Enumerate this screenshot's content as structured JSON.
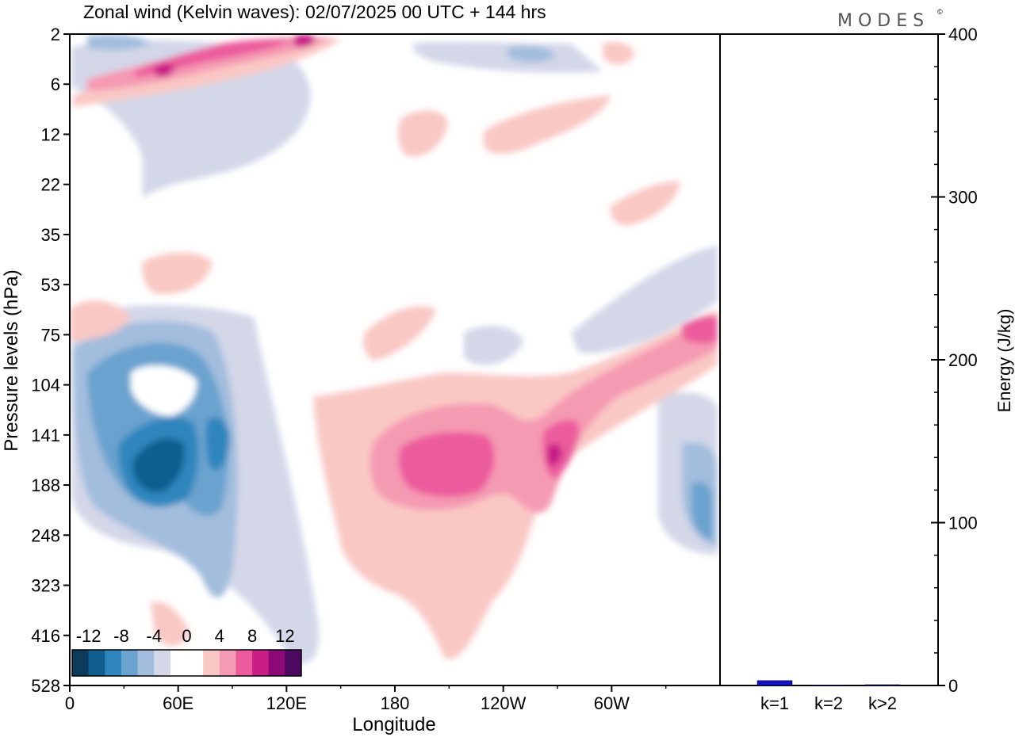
{
  "chart_data": [
    {
      "type": "heatmap",
      "title": "Zonal wind (Kelvin waves):  02/07/2025  00 UTC  + 144 hrs",
      "xlabel": "Longitude",
      "ylabel": "Pressure levels (hPa)",
      "x_ticks": [
        "0",
        "60E",
        "120E",
        "180",
        "120W",
        "60W"
      ],
      "y_ticks": [
        "2",
        "6",
        "12",
        "22",
        "35",
        "53",
        "75",
        "104",
        "141",
        "188",
        "248",
        "323",
        "416",
        "528"
      ],
      "colorbar": {
        "tick_labels": [
          "-12",
          "-8",
          "-4",
          "0",
          "4",
          "8",
          "12"
        ],
        "colors": [
          "#0d3b5c",
          "#0e5f8e",
          "#2f86bd",
          "#6aa3cf",
          "#a3bddd",
          "#d3d7e8",
          "#ffffff",
          "#ffffff",
          "#f9c8c4",
          "#f59ab3",
          "#ec5b9c",
          "#c81e86",
          "#8c0a78",
          "#4e0a60"
        ]
      },
      "regions": [
        {
          "level": "pos1",
          "lon_range": [
            200,
            330
          ],
          "p_range": [
            104,
            416
          ]
        },
        {
          "level": "pos3",
          "lon_range": [
            190,
            250
          ],
          "p_range": [
            141,
            188
          ]
        },
        {
          "level": "neg3",
          "lon_range": [
            30,
            80
          ],
          "p_range": [
            141,
            248
          ]
        },
        {
          "level": "neg2",
          "lon_range": [
            5,
            100
          ],
          "p_range": [
            75,
            323
          ]
        },
        {
          "level": "pos1",
          "lon_range": [
            295,
            358
          ],
          "p_range": [
            53,
            188
          ]
        }
      ]
    },
    {
      "type": "bar",
      "categories": [
        "k=1",
        "k=2",
        "k>2"
      ],
      "values": [
        3,
        0.3,
        0.5
      ],
      "ylabel": "Energy (J/kg)",
      "ylim": [
        0,
        400
      ],
      "y_ticks": [
        "0",
        "100",
        "200",
        "300",
        "400"
      ],
      "color": "#1010c8"
    }
  ],
  "logo": {
    "text": "MODES",
    "mark": "©"
  }
}
